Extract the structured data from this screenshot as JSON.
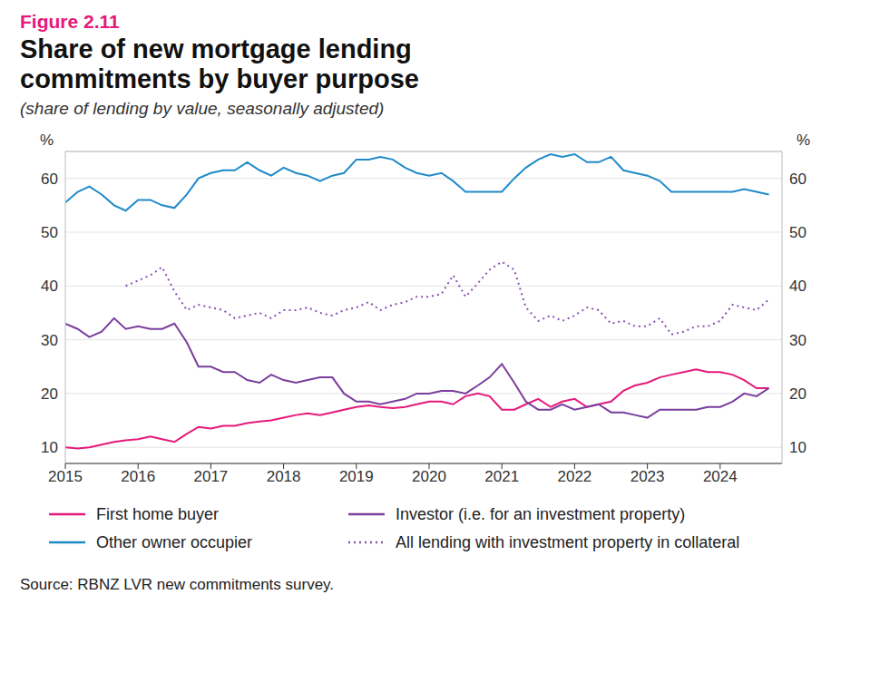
{
  "figure_label": "Figure 2.11",
  "chart_data": {
    "type": "line",
    "title": "Share of new mortgage lending commitments by buyer purpose",
    "subtitle": "(share of lending by value, seasonally adjusted)",
    "y_label": "%",
    "source": "Source: RBNZ LVR new commitments survey.",
    "x": [
      2015,
      2015.17,
      2015.33,
      2015.5,
      2015.67,
      2015.83,
      2016,
      2016.17,
      2016.33,
      2016.5,
      2016.67,
      2016.83,
      2017,
      2017.17,
      2017.33,
      2017.5,
      2017.67,
      2017.83,
      2018,
      2018.17,
      2018.33,
      2018.5,
      2018.67,
      2018.83,
      2019,
      2019.17,
      2019.33,
      2019.5,
      2019.67,
      2019.83,
      2020,
      2020.17,
      2020.33,
      2020.5,
      2020.67,
      2020.83,
      2021,
      2021.17,
      2021.33,
      2021.5,
      2021.67,
      2021.83,
      2022,
      2022.17,
      2022.33,
      2022.5,
      2022.67,
      2022.83,
      2023,
      2023.17,
      2023.33,
      2023.5,
      2023.67,
      2023.83,
      2024,
      2024.17,
      2024.33,
      2024.5,
      2024.67
    ],
    "xlim": [
      2015,
      2024.85
    ],
    "xticks": [
      2015,
      2016,
      2017,
      2018,
      2019,
      2020,
      2021,
      2022,
      2023,
      2024
    ],
    "ylim": [
      7,
      65
    ],
    "yticks": [
      10,
      20,
      30,
      40,
      50,
      60
    ],
    "grid": true,
    "series": [
      {
        "name": "First home buyer",
        "color": "#e5197a",
        "line_style": "solid",
        "values": [
          10,
          9.8,
          10,
          10.5,
          11,
          11.3,
          11.5,
          12,
          11.5,
          11,
          12.5,
          13.8,
          13.5,
          14,
          14,
          14.5,
          14.8,
          15,
          15.5,
          16,
          16.3,
          16,
          16.5,
          17,
          17.5,
          17.8,
          17.5,
          17.3,
          17.5,
          18,
          18.5,
          18.5,
          18,
          19.5,
          20,
          19.5,
          17,
          17,
          18,
          19,
          17.5,
          18.5,
          19,
          17.5,
          18,
          18.5,
          20.5,
          21.5,
          22,
          23,
          23.5,
          24,
          24.5,
          24,
          24,
          23.5,
          22.5,
          21,
          21
        ]
      },
      {
        "name": "Investor (i.e. for an investment property)",
        "color": "#7a3e9d",
        "line_style": "solid",
        "values": [
          33,
          32,
          30.5,
          31.5,
          34,
          32,
          32.5,
          32,
          32,
          33,
          29.5,
          25,
          25,
          24,
          24,
          22.5,
          22,
          23.5,
          22.5,
          22,
          22.5,
          23,
          23,
          20,
          18.5,
          18.5,
          18,
          18.5,
          19,
          20,
          20,
          20.5,
          20.5,
          20,
          21.5,
          23,
          25.5,
          22,
          18.5,
          17,
          17,
          18,
          17,
          17.5,
          18,
          16.5,
          16.5,
          16,
          15.5,
          17,
          17,
          17,
          17,
          17.5,
          17.5,
          18.5,
          20,
          19.5,
          21
        ]
      },
      {
        "name": "Other owner occupier",
        "color": "#1f8ac9",
        "line_style": "solid",
        "values": [
          55.5,
          57.5,
          58.5,
          57,
          55,
          54,
          56,
          56,
          55,
          54.5,
          57,
          60,
          61,
          61.5,
          61.5,
          63,
          61.5,
          60.5,
          62,
          61,
          60.5,
          59.5,
          60.5,
          61,
          63.5,
          63.5,
          64,
          63.5,
          62,
          61,
          60.5,
          61,
          59.5,
          57.5,
          57.5,
          57.5,
          57.5,
          60,
          62,
          63.5,
          64.5,
          64,
          64.5,
          63,
          63,
          64,
          61.5,
          61,
          60.5,
          59.5,
          57.5,
          57.5,
          57.5,
          57.5,
          57.5,
          57.5,
          58,
          57.5,
          57
        ]
      },
      {
        "name": "All lending with investment property in collateral",
        "color": "#8a4fb3",
        "line_style": "dotted",
        "values": [
          null,
          null,
          null,
          null,
          null,
          40,
          41,
          42,
          43.5,
          39,
          35.5,
          36.5,
          36,
          35.5,
          34,
          34.5,
          35,
          34,
          35.5,
          35.5,
          36,
          35,
          34.5,
          35.5,
          36,
          37,
          35.5,
          36.5,
          37,
          38,
          38,
          38.5,
          42,
          38,
          40.5,
          43,
          44.5,
          43,
          36,
          33.5,
          34.5,
          33.5,
          34.5,
          36,
          35.5,
          33,
          33.5,
          32.5,
          32.5,
          34,
          31,
          31.5,
          32.5,
          32.5,
          33.5,
          36.5,
          36,
          35.5,
          37.5
        ]
      }
    ]
  }
}
